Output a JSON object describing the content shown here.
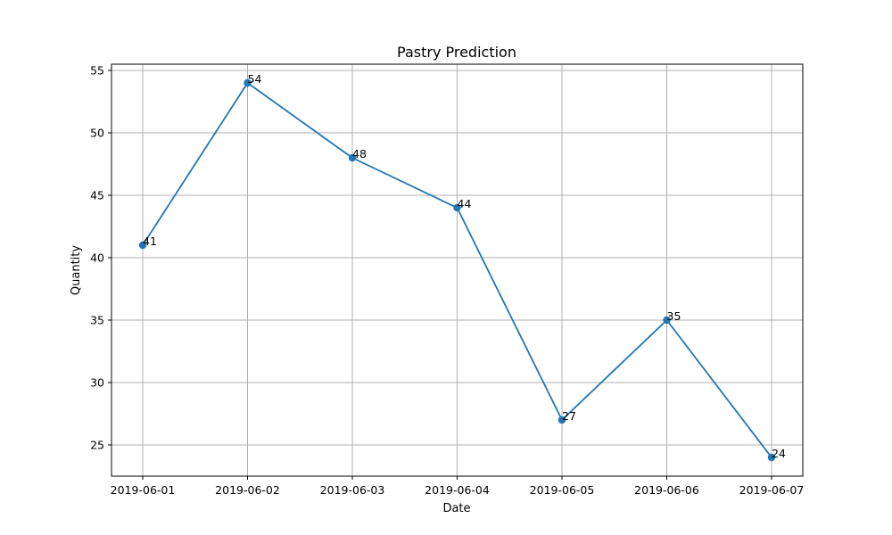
{
  "chart_data": {
    "type": "line",
    "title": "Pastry Prediction",
    "xlabel": "Date",
    "ylabel": "Quantity",
    "x": [
      "2019-06-01",
      "2019-06-02",
      "2019-06-03",
      "2019-06-04",
      "2019-06-05",
      "2019-06-06",
      "2019-06-07"
    ],
    "series": [
      {
        "values": [
          41,
          54,
          48,
          44,
          27,
          35,
          24
        ],
        "color": "#1f77b4"
      }
    ],
    "ylim": [
      22.5,
      55.5
    ],
    "yticks": [
      25,
      30,
      35,
      40,
      45,
      50,
      55
    ],
    "grid": true,
    "data_labels": true
  }
}
